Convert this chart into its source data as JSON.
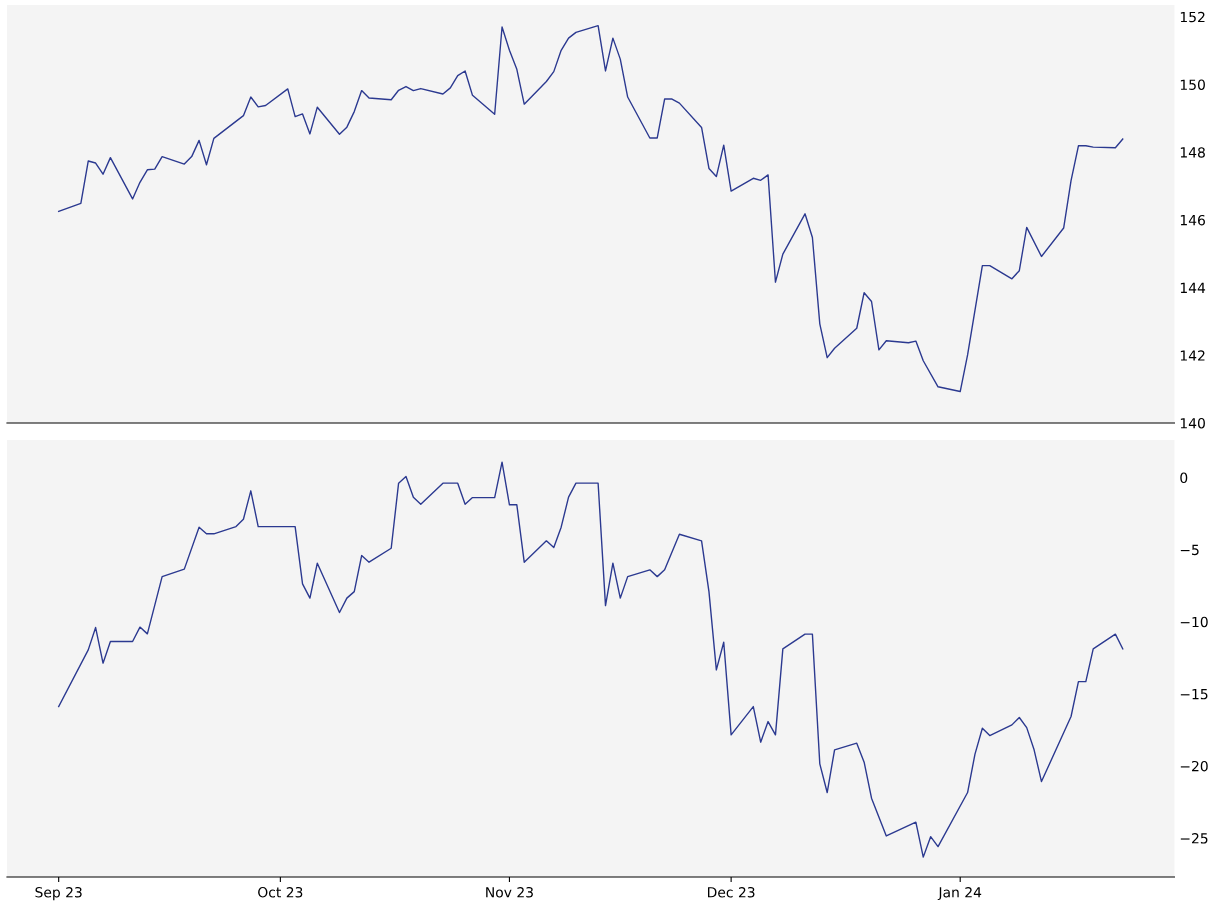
{
  "chart_data": [
    {
      "type": "line",
      "x": [
        "2023-09-01",
        "2023-09-04",
        "2023-09-05",
        "2023-09-06",
        "2023-09-07",
        "2023-09-08",
        "2023-09-11",
        "2023-09-12",
        "2023-09-13",
        "2023-09-14",
        "2023-09-15",
        "2023-09-18",
        "2023-09-19",
        "2023-09-20",
        "2023-09-21",
        "2023-09-22",
        "2023-09-26",
        "2023-09-27",
        "2023-09-28",
        "2023-09-29",
        "2023-10-02",
        "2023-10-03",
        "2023-10-04",
        "2023-10-05",
        "2023-10-06",
        "2023-10-09",
        "2023-10-10",
        "2023-10-11",
        "2023-10-12",
        "2023-10-13",
        "2023-10-16",
        "2023-10-17",
        "2023-10-18",
        "2023-10-19",
        "2023-10-20",
        "2023-10-23",
        "2023-10-24",
        "2023-10-25",
        "2023-10-26",
        "2023-10-27",
        "2023-10-30",
        "2023-10-31",
        "2023-11-01",
        "2023-11-02",
        "2023-11-03",
        "2023-11-06",
        "2023-11-07",
        "2023-11-08",
        "2023-11-09",
        "2023-11-10",
        "2023-11-13",
        "2023-11-14",
        "2023-11-15",
        "2023-11-16",
        "2023-11-17",
        "2023-11-20",
        "2023-11-21",
        "2023-11-22",
        "2023-11-23",
        "2023-11-24",
        "2023-11-27",
        "2023-11-28",
        "2023-11-29",
        "2023-11-30",
        "2023-12-01",
        "2023-12-04",
        "2023-12-05",
        "2023-12-06",
        "2023-12-07",
        "2023-12-08",
        "2023-12-11",
        "2023-12-12",
        "2023-12-13",
        "2023-12-14",
        "2023-12-15",
        "2023-12-18",
        "2023-12-19",
        "2023-12-20",
        "2023-12-21",
        "2023-12-22",
        "2023-12-25",
        "2023-12-26",
        "2023-12-27",
        "2023-12-29",
        "2024-01-01",
        "2024-01-02",
        "2024-01-04",
        "2024-01-05",
        "2024-01-08",
        "2024-01-09",
        "2024-01-10",
        "2024-01-12",
        "2024-01-15",
        "2024-01-16",
        "2024-01-17",
        "2024-01-18",
        "2024-01-19",
        "2024-01-22",
        "2024-01-23"
      ],
      "series": [
        {
          "color": "#2b3990",
          "values": [
            146.25,
            146.49,
            147.74,
            147.68,
            147.35,
            147.84,
            146.62,
            147.11,
            147.48,
            147.5,
            147.87,
            147.65,
            147.87,
            148.35,
            147.63,
            148.41,
            149.08,
            149.63,
            149.34,
            149.38,
            149.87,
            149.05,
            149.13,
            148.54,
            149.33,
            148.53,
            148.74,
            149.2,
            149.82,
            149.6,
            149.55,
            149.83,
            149.94,
            149.82,
            149.88,
            149.72,
            149.9,
            150.26,
            150.4,
            149.68,
            149.12,
            151.7,
            151.01,
            150.45,
            149.42,
            150.09,
            150.38,
            151.01,
            151.37,
            151.54,
            151.74,
            150.4,
            151.37,
            150.75,
            149.63,
            148.42,
            148.42,
            149.57,
            149.57,
            149.45,
            148.73,
            147.52,
            147.28,
            148.21,
            146.85,
            147.23,
            147.17,
            147.33,
            144.16,
            144.99,
            146.18,
            145.48,
            142.93,
            141.93,
            142.21,
            142.8,
            143.85,
            143.59,
            142.16,
            142.43,
            142.37,
            142.42,
            141.84,
            141.07,
            140.93,
            142.01,
            144.65,
            144.65,
            144.26,
            144.5,
            145.78,
            144.92,
            145.76,
            147.16,
            148.19,
            148.19,
            148.15,
            148.13,
            148.39
          ]
        }
      ],
      "xlim": [
        "2023-08-25",
        "2024-01-30"
      ],
      "ylim": [
        140,
        152.35
      ],
      "yticks": [
        140,
        142,
        144,
        146,
        148,
        150,
        152
      ],
      "tick_labels": "y"
    },
    {
      "type": "line",
      "x": [
        "2023-09-01",
        "2023-09-05",
        "2023-09-06",
        "2023-09-07",
        "2023-09-08",
        "2023-09-11",
        "2023-09-12",
        "2023-09-13",
        "2023-09-15",
        "2023-09-18",
        "2023-09-20",
        "2023-09-21",
        "2023-09-22",
        "2023-09-25",
        "2023-09-26",
        "2023-09-27",
        "2023-09-28",
        "2023-10-03",
        "2023-10-04",
        "2023-10-05",
        "2023-10-06",
        "2023-10-09",
        "2023-10-10",
        "2023-10-11",
        "2023-10-12",
        "2023-10-13",
        "2023-10-16",
        "2023-10-17",
        "2023-10-18",
        "2023-10-19",
        "2023-10-20",
        "2023-10-23",
        "2023-10-25",
        "2023-10-26",
        "2023-10-27",
        "2023-10-30",
        "2023-10-31",
        "2023-11-01",
        "2023-11-02",
        "2023-11-03",
        "2023-11-06",
        "2023-11-07",
        "2023-11-08",
        "2023-11-09",
        "2023-11-10",
        "2023-11-13",
        "2023-11-14",
        "2023-11-15",
        "2023-11-16",
        "2023-11-17",
        "2023-11-20",
        "2023-11-21",
        "2023-11-22",
        "2023-11-24",
        "2023-11-27",
        "2023-11-28",
        "2023-11-29",
        "2023-11-30",
        "2023-12-01",
        "2023-12-04",
        "2023-12-05",
        "2023-12-06",
        "2023-12-07",
        "2023-12-08",
        "2023-12-11",
        "2023-12-12",
        "2023-12-13",
        "2023-12-14",
        "2023-12-15",
        "2023-12-18",
        "2023-12-19",
        "2023-12-20",
        "2023-12-22",
        "2023-12-26",
        "2023-12-27",
        "2023-12-28",
        "2023-12-29",
        "2024-01-02",
        "2024-01-03",
        "2024-01-04",
        "2024-01-05",
        "2024-01-08",
        "2024-01-09",
        "2024-01-10",
        "2024-01-11",
        "2024-01-12",
        "2024-01-16",
        "2024-01-17",
        "2024-01-18",
        "2024-01-19",
        "2024-01-22",
        "2024-01-23"
      ],
      "series": [
        {
          "color": "#2b3990",
          "values": [
            -15.88,
            -11.95,
            -10.4,
            -12.87,
            -11.37,
            -11.37,
            -10.37,
            -10.84,
            -6.87,
            -6.35,
            -3.44,
            -3.9,
            -3.9,
            -3.4,
            -2.89,
            -0.92,
            -3.4,
            -3.4,
            -7.37,
            -8.36,
            -5.94,
            -9.36,
            -8.36,
            -7.91,
            -5.41,
            -5.87,
            -4.9,
            -0.39,
            0.07,
            -1.36,
            -1.85,
            -0.39,
            -0.39,
            -1.85,
            -1.39,
            -1.39,
            1.07,
            -1.89,
            -1.89,
            -5.87,
            -4.39,
            -4.85,
            -3.44,
            -1.36,
            -0.39,
            -0.39,
            -8.88,
            -5.94,
            -8.36,
            -6.87,
            -6.4,
            -6.87,
            -6.4,
            -3.93,
            -4.39,
            -7.91,
            -13.34,
            -11.42,
            -17.84,
            -15.88,
            -18.35,
            -16.92,
            -17.84,
            -11.88,
            -10.86,
            -10.86,
            -19.85,
            -21.84,
            -18.88,
            -18.42,
            -19.74,
            -22.23,
            -24.85,
            -23.9,
            -26.32,
            -24.9,
            -25.59,
            -21.84,
            -19.18,
            -17.38,
            -17.89,
            -17.15,
            -16.64,
            -17.34,
            -18.88,
            -21.08,
            -16.57,
            -14.15,
            -14.15,
            -11.88,
            -10.86,
            -11.88
          ]
        }
      ],
      "xlim": [
        "2023-08-25",
        "2024-01-30"
      ],
      "xticks": [
        {
          "value": "2023-09-01",
          "label": "Sep 23"
        },
        {
          "value": "2023-10-01",
          "label": "Oct 23"
        },
        {
          "value": "2023-11-01",
          "label": "Nov 23"
        },
        {
          "value": "2023-12-01",
          "label": "Dec 23"
        },
        {
          "value": "2024-01-01",
          "label": "Jan 24"
        }
      ],
      "ylim": [
        -27.7,
        2.6
      ],
      "yticks": [
        {
          "value": -25,
          "label": "−25"
        },
        {
          "value": -20,
          "label": "−20"
        },
        {
          "value": -15,
          "label": "−15"
        },
        {
          "value": -10,
          "label": "−10"
        },
        {
          "value": -5,
          "label": "−5"
        },
        0
      ]
    }
  ]
}
